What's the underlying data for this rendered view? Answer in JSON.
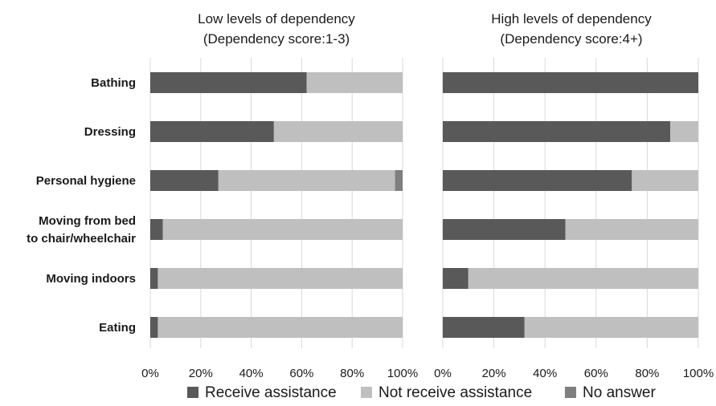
{
  "chart_data": {
    "type": "bar",
    "orientation": "horizontal",
    "stacked": "percent",
    "grid": true,
    "legend_position": "bottom",
    "categories": [
      "Bathing",
      "Dressing",
      "Personal hygiene",
      "Moving from bed to chair/wheelchair",
      "Moving indoors",
      "Eating"
    ],
    "category_lines": [
      [
        "Bathing"
      ],
      [
        "Dressing"
      ],
      [
        "Personal hygiene"
      ],
      [
        "Moving from bed",
        "to chair/wheelchair"
      ],
      [
        "Moving indoors"
      ],
      [
        "Eating"
      ]
    ],
    "xlim": [
      0,
      100
    ],
    "xticks": [
      "0%",
      "20%",
      "40%",
      "60%",
      "80%",
      "100%"
    ],
    "legend": [
      {
        "name": "Receive assistance",
        "color": "#595959"
      },
      {
        "name": "Not receive assistance",
        "color": "#bfbfbf"
      },
      {
        "name": "No answer",
        "color": "#7f7f7f"
      }
    ],
    "panels": [
      {
        "title_lines": [
          "Low levels of dependency",
          "(Dependency score:1-3)"
        ],
        "series": [
          {
            "name": "Receive assistance",
            "values": [
              62,
              49,
              27,
              5,
              3,
              3
            ]
          },
          {
            "name": "Not receive assistance",
            "values": [
              38,
              51,
              70,
              95,
              97,
              97
            ]
          },
          {
            "name": "No answer",
            "values": [
              0,
              0,
              3,
              0,
              0,
              0
            ]
          }
        ]
      },
      {
        "title_lines": [
          "High levels of dependency",
          "(Dependency score:4+)"
        ],
        "series": [
          {
            "name": "Receive assistance",
            "values": [
              100,
              89,
              74,
              48,
              10,
              32
            ]
          },
          {
            "name": "Not receive assistance",
            "values": [
              0,
              11,
              26,
              52,
              90,
              68
            ]
          },
          {
            "name": "No answer",
            "values": [
              0,
              0,
              0,
              0,
              0,
              0
            ]
          }
        ]
      }
    ]
  }
}
